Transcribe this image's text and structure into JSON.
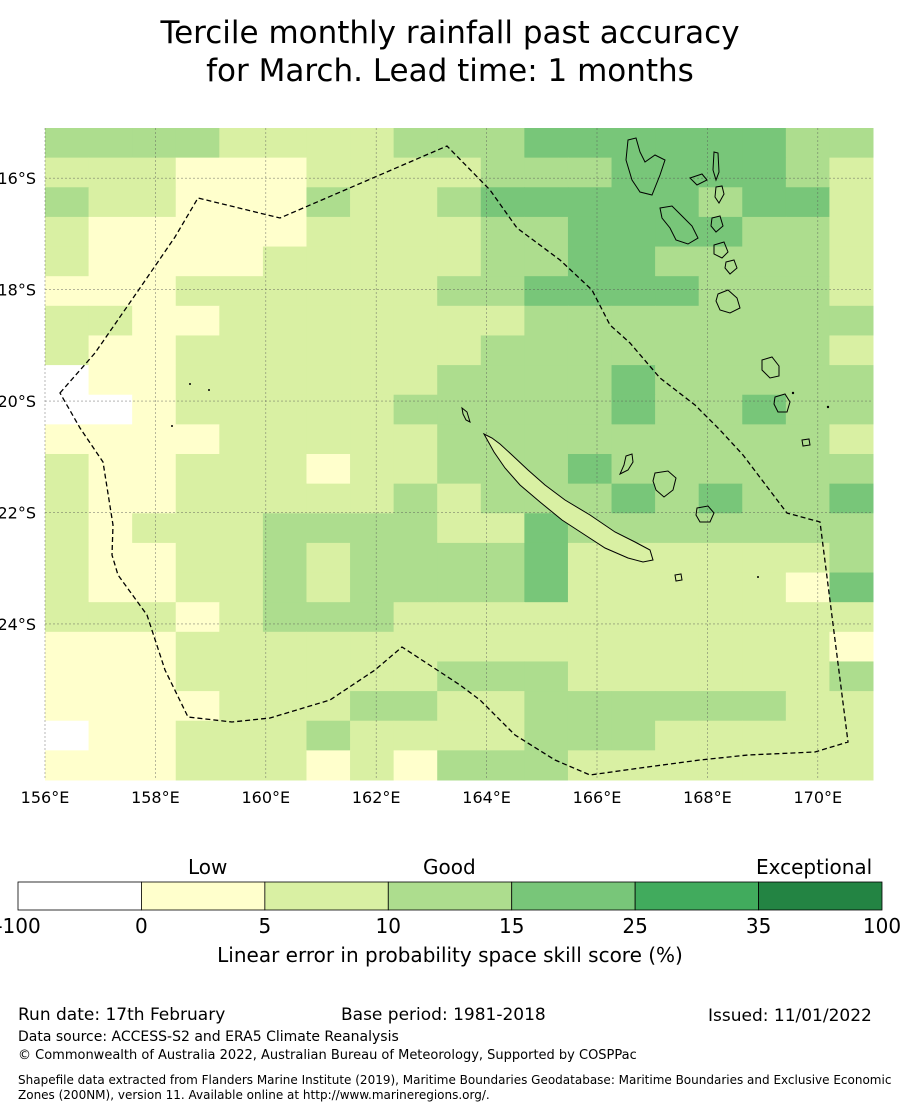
{
  "title": {
    "line1": "Tercile monthly rainfall past accuracy",
    "line2": "for March. Lead time: 1 months"
  },
  "map": {
    "lon_range": [
      156,
      171
    ],
    "lat_range": [
      -26.8,
      -15.1
    ],
    "x_ticks": [
      "156°E",
      "158°E",
      "160°E",
      "162°E",
      "164°E",
      "166°E",
      "168°E",
      "170°E"
    ],
    "y_ticks": [
      "16°S",
      "18°S",
      "20°S",
      "22°S",
      "24°S"
    ],
    "grid": true,
    "cell_rows": [
      "3333222233344444433",
      "2221112222333444432",
      "3221113223444443442",
      "2111112222334444332",
      "2111122222334433332",
      "1112222223344443332",
      "2211222222233333333",
      "2112222222333333332",
      "0112222223333433333",
      "0012222233333433433",
      "1111222223333333332",
      "2112221223334333333",
      "2112222232333434334",
      "2122233332243333333",
      "2112232333342222223",
      "2112232333342222214",
      "2221233322222222222",
      "1112222222222222221",
      "1112222223332222223",
      "1111222332233333322",
      "0112223222233322222",
      "1112221213332222222"
    ],
    "cell_rows_order": "north to south, 19 columns west to east"
  },
  "colorbar": {
    "category_labels": [
      "Low",
      "Good",
      "Exceptional"
    ],
    "boundaries": [
      "-100",
      "0",
      "5",
      "10",
      "15",
      "25",
      "35",
      "100"
    ],
    "colors": [
      "#ffffff",
      "#ffffcc",
      "#d9f0a3",
      "#addd8e",
      "#78c679",
      "#41ab5d",
      "#238443"
    ],
    "label": "Linear error in probability space skill score (%)"
  },
  "footer": {
    "run_date": "Run date: 17th February",
    "base_period": "Base period: 1981-2018",
    "issued": "Issued: 11/01/2022",
    "data_source": "Data source: ACCESS-S2 and ERA5 Climate Reanalysis",
    "copyright": "© Commonwealth of Australia 2022, Australian Bureau of Meteorology, Supported by COSPPac",
    "shapefile": "Shapefile data extracted from Flanders Marine Institute (2019), Maritime Boundaries Geodatabase: Maritime Boundaries and Exclusive Economic Zones (200NM), version 11. Available online at http://www.marineregions.org/."
  }
}
